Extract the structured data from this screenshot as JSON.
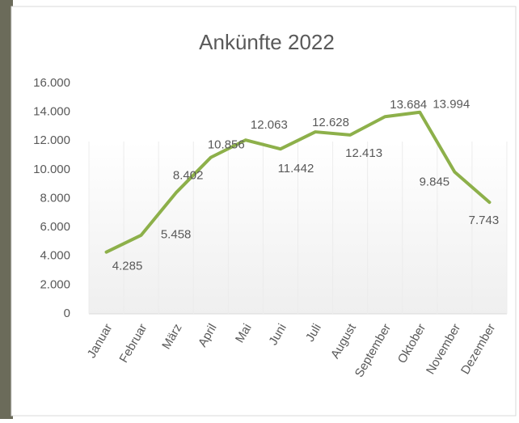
{
  "chart_data": {
    "type": "line",
    "title": "Ankünfte 2022",
    "categories": [
      "Januar",
      "Februar",
      "März",
      "April",
      "Mai",
      "Juni",
      "Juli",
      "August",
      "September",
      "Oktober",
      "November",
      "Dezember"
    ],
    "values": [
      4285,
      5458,
      8402,
      10856,
      12063,
      11442,
      12628,
      12413,
      13684,
      13994,
      9845,
      7743
    ],
    "value_labels": [
      "4.285",
      "5.458",
      "8.402",
      "10.856",
      "12.063",
      "11.442",
      "12.628",
      "12.413",
      "13.684",
      "13.994",
      "9.845",
      "7.743"
    ],
    "color": "#8db04a",
    "ylim": [
      0,
      16000
    ],
    "yticks": [
      0,
      {
        "value": 2000,
        "label": "2.000"
      },
      {
        "value": 4000,
        "label": "4.000"
      },
      {
        "value": 6000,
        "label": "6.000"
      },
      {
        "value": 8000,
        "label": "8.000"
      },
      {
        "value": 10000,
        "label": "10.000"
      },
      {
        "value": 12000,
        "label": "12.000"
      },
      {
        "value": 14000,
        "label": "14.000"
      },
      {
        "value": 16000,
        "label": "16.000"
      }
    ],
    "grid": true
  }
}
